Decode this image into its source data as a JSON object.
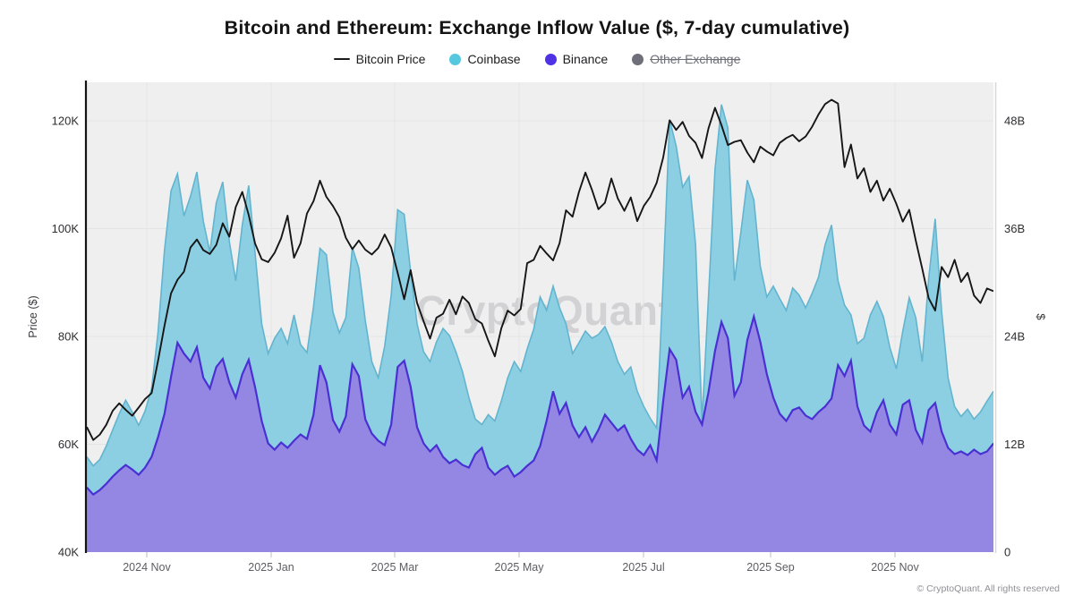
{
  "header": {
    "title": "Bitcoin and Ethereum: Exchange Inflow Value ($, 7-day cumulative)"
  },
  "legend": {
    "items": [
      {
        "label": "Bitcoin Price",
        "marker": "line",
        "color": "#1b1b1b",
        "disabled": false
      },
      {
        "label": "Coinbase",
        "marker": "dot",
        "color": "#55c8df",
        "disabled": false
      },
      {
        "label": "Binance",
        "marker": "dot",
        "color": "#4e32e4",
        "disabled": false
      },
      {
        "label": "Other Exchange",
        "marker": "dot",
        "color": "#6f6f7a",
        "disabled": true
      }
    ]
  },
  "watermark": {
    "text": "CryptoQuant"
  },
  "footer": {
    "copyright": "© CryptoQuant. All rights reserved"
  },
  "chart_data": {
    "type": "line+stacked-area",
    "grid": true,
    "background": "#efefef",
    "x_ticks": [
      {
        "label": "2024 Nov",
        "t": 0.0661
      },
      {
        "label": "2025 Jan",
        "t": 0.2034
      },
      {
        "label": "2025 Mar",
        "t": 0.3396
      },
      {
        "label": "2025 May",
        "t": 0.4768
      },
      {
        "label": "2025 Jul",
        "t": 0.614
      },
      {
        "label": "2025 Sep",
        "t": 0.7542
      },
      {
        "label": "2025 Nov",
        "t": 0.8914
      }
    ],
    "y_left": {
      "title": "Price ($)",
      "tick_labels": [
        "40K",
        "60K",
        "80K",
        "100K",
        "120K"
      ],
      "tick_values": [
        40,
        60,
        80,
        100,
        120
      ],
      "range_at_plot_edges": [
        40,
        127.2
      ]
    },
    "y_right": {
      "title": "$",
      "tick_labels": [
        "0",
        "12B",
        "24B",
        "36B",
        "48B"
      ],
      "tick_values": [
        0,
        12,
        24,
        36,
        48
      ],
      "range_at_plot_edges": [
        0,
        52.3
      ]
    },
    "series": [
      {
        "name": "Bitcoin Price",
        "type": "line",
        "axis": "left",
        "color": "#161616",
        "unit": "K$",
        "values": [
          63.2,
          60.8,
          61.8,
          63.6,
          66.2,
          67.6,
          66.4,
          65.3,
          66.8,
          68.4,
          69.5,
          75.5,
          82,
          88,
          90.5,
          92,
          96.5,
          98,
          96,
          95.3,
          97,
          101,
          98.5,
          104,
          106.8,
          102.5,
          97.2,
          94.3,
          93.8,
          95.5,
          98.2,
          102.4,
          94.6,
          97.3,
          102.8,
          105.1,
          108.9,
          105.9,
          104.2,
          102.1,
          98.3,
          96.2,
          97.8,
          96.1,
          95.2,
          96.4,
          98.9,
          96.5,
          91.8,
          86.9,
          92.3,
          86.2,
          82.8,
          79.6,
          83.5,
          84.2,
          86.8,
          84.1,
          87.4,
          86.2,
          83.2,
          82.4,
          79.2,
          76.3,
          81.5,
          84.8,
          83.9,
          85.1,
          93.6,
          94.2,
          96.8,
          95.4,
          94.1,
          97.3,
          103.4,
          102.2,
          106.8,
          110.4,
          107.2,
          103.6,
          104.8,
          109.3,
          105.6,
          103.3,
          105.8,
          101.4,
          104.2,
          105.9,
          108.5,
          113.2,
          120.1,
          118.3,
          119.8,
          117.2,
          115.9,
          113.1,
          118.6,
          122.4,
          119.2,
          115.5,
          116.1,
          116.4,
          114.1,
          112.3,
          115.2,
          114.3,
          113.6,
          115.9,
          116.8,
          117.4,
          116.2,
          117.1,
          118.9,
          121.2,
          123.1,
          123.9,
          123.2,
          111.4,
          115.6,
          109.3,
          111.2,
          106.8,
          108.9,
          105.2,
          107.4,
          104.6,
          101.3,
          103.5,
          97.8,
          92.6,
          87.1,
          84.8,
          92.9,
          91,
          94.2,
          90.1,
          91.8,
          87.6,
          86.2,
          88.9,
          88.4
        ]
      },
      {
        "name": "Coinbase",
        "type": "area",
        "axis": "right",
        "stack_order": 1,
        "fill": "#8ccfe2",
        "edge": "#63b4cf",
        "unit": "B$",
        "values": [
          3.4,
          3.2,
          3.4,
          4.2,
          5.2,
          6.3,
          7.2,
          6.4,
          5.5,
          6.3,
          7.6,
          11.7,
          18.2,
          20.7,
          18.8,
          15.3,
          18.4,
          19.5,
          17.4,
          15.2,
          18.3,
          19.7,
          15.7,
          13,
          16.6,
          19.4,
          14.9,
          10.8,
          10,
          12.4,
          12.7,
          11.6,
          14,
          10,
          9.6,
          12,
          13,
          14.2,
          12,
          11,
          11,
          13,
          12,
          11,
          8,
          7,
          11,
          14.4,
          17.5,
          16.3,
          12.8,
          11.5,
          10.2,
          10,
          11.5,
          14.3,
          14.2,
          12,
          10.4,
          7.8,
          3.9,
          2.6,
          5.9,
          6,
          7.6,
          9.8,
          12.8,
          11.2,
          13,
          14.6,
          16.6,
          12.3,
          11.7,
          11.8,
          8.8,
          8,
          10.5,
          10.7,
          11.5,
          10.6,
          9.8,
          9,
          7.7,
          5.7,
          8,
          6.5,
          5.4,
          3,
          3.6,
          13.6,
          25.5,
          23.8,
          23.4,
          23.4,
          18.6,
          0.4,
          10.6,
          20.2,
          24.2,
          23.4,
          12.8,
          16.7,
          17.8,
          13,
          8.4,
          8.6,
          12.4,
          12.8,
          12.3,
          13.6,
          12.5,
          12,
          14,
          15,
          18,
          19.3,
          9.4,
          7.9,
          5.1,
          7,
          9.7,
          13,
          12.3,
          9.3,
          8.6,
          7.3,
          8.2,
          11.4,
          12.5,
          9,
          14.6,
          20.5,
          13.4,
          7.8,
          5.3,
          3.9,
          5.1,
          3.4,
          4.7,
          5.6,
          5.8
        ]
      },
      {
        "name": "Binance",
        "type": "area",
        "axis": "right",
        "stack_order": 0,
        "fill": "#9487e4",
        "edge": "#4a30d2",
        "unit": "B$",
        "values": [
          7.2,
          6.4,
          6.9,
          7.6,
          8.4,
          9.1,
          9.7,
          9.2,
          8.6,
          9.4,
          10.6,
          12.8,
          15.4,
          19.5,
          23.3,
          22.1,
          21.2,
          22.8,
          19.4,
          18.2,
          20.6,
          21.5,
          18.9,
          17.2,
          19.8,
          21.4,
          18.3,
          14.6,
          12.1,
          11.4,
          12.2,
          11.6,
          12.4,
          13.1,
          12.6,
          15.3,
          20.8,
          18.9,
          14.7,
          13.4,
          15.1,
          20.9,
          19.6,
          14.8,
          13.2,
          12.4,
          11.9,
          14.2,
          20.6,
          21.3,
          18.4,
          13.9,
          12.1,
          11.2,
          11.9,
          10.6,
          9.9,
          10.3,
          9.7,
          9.4,
          10.9,
          11.6,
          9.4,
          8.6,
          9.2,
          9.6,
          8.4,
          8.9,
          9.6,
          10.2,
          11.8,
          14.6,
          17.9,
          15.4,
          16.6,
          14.1,
          12.8,
          13.9,
          12.3,
          13.6,
          15.3,
          14.4,
          13.5,
          14.1,
          12.6,
          11.4,
          10.8,
          11.9,
          10.2,
          16.8,
          22.6,
          21.4,
          17.2,
          18.4,
          15.6,
          14.2,
          17.8,
          22.4,
          25.6,
          23.8,
          17.4,
          18.9,
          23.6,
          26.2,
          23.4,
          19.8,
          17.2,
          15.4,
          14.6,
          15.8,
          16.1,
          15.2,
          14.8,
          15.6,
          16.2,
          17.1,
          20.8,
          19.6,
          21.3,
          16.2,
          14.1,
          13.4,
          15.6,
          16.9,
          14.2,
          13.1,
          16.4,
          16.9,
          13.6,
          12.2,
          15.8,
          16.6,
          13.4,
          11.6,
          10.9,
          11.2,
          10.8,
          11.4,
          10.9,
          11.2,
          12.1
        ]
      },
      {
        "name": "Other Exchange",
        "type": "area",
        "axis": "right",
        "disabled": true,
        "values": []
      }
    ]
  }
}
